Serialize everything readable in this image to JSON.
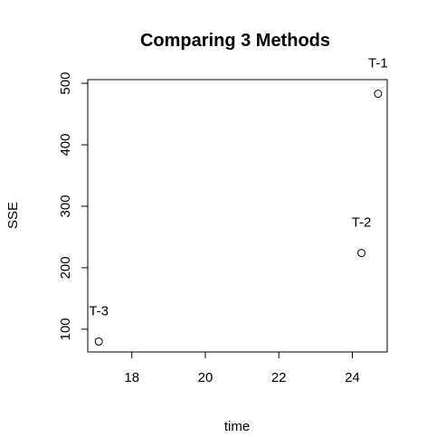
{
  "chart_data": {
    "type": "scatter",
    "title": "Comparing 3 Methods",
    "xlabel": "time",
    "ylabel": "SSE",
    "xlim": [
      16.8,
      24.95
    ],
    "ylim": [
      63,
      506
    ],
    "x_ticks": [
      18,
      20,
      22,
      24
    ],
    "y_ticks": [
      100,
      200,
      300,
      400,
      500
    ],
    "grid": false,
    "legend": "none",
    "points": [
      {
        "label": "T-1",
        "x": 24.7,
        "y": 483
      },
      {
        "label": "T-2",
        "x": 24.25,
        "y": 224
      },
      {
        "label": "T-3",
        "x": 17.1,
        "y": 80
      }
    ]
  }
}
